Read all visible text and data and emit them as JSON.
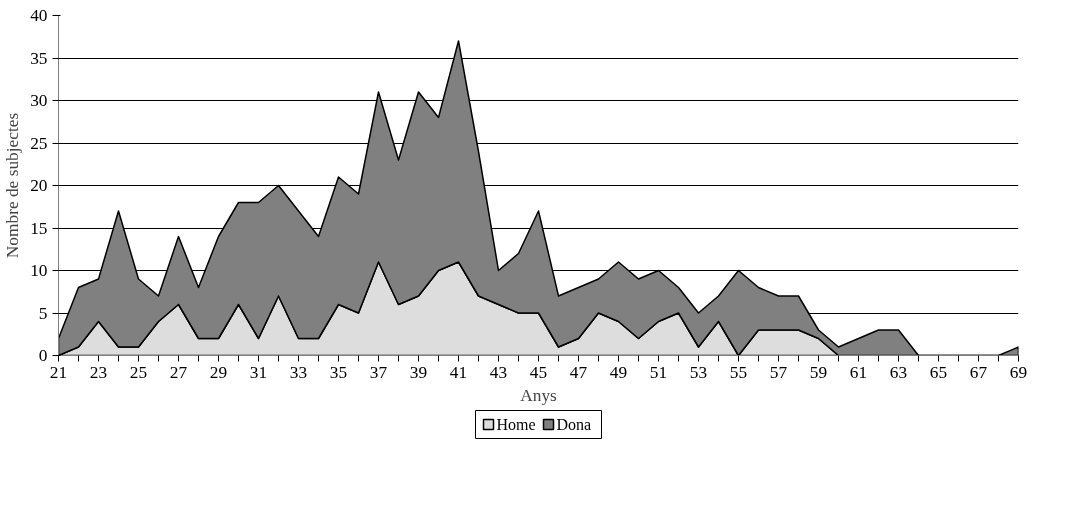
{
  "chart_data": {
    "type": "area",
    "stacked": true,
    "xlabel": "Anys",
    "ylabel": "Nombre de subjectes",
    "categories": [
      "21",
      null,
      "23",
      null,
      "25",
      null,
      "27",
      null,
      "29",
      null,
      "31",
      null,
      "33",
      null,
      "35",
      null,
      "37",
      null,
      "39",
      null,
      "41",
      null,
      "43",
      null,
      "45",
      null,
      "47",
      null,
      "49",
      null,
      "51",
      null,
      "53",
      null,
      "55",
      null,
      "57",
      null,
      "59",
      null,
      "61",
      null,
      "63",
      null,
      "65",
      null,
      "67",
      null,
      "69"
    ],
    "series": [
      {
        "name": "Home",
        "color": "#dddddd",
        "values": [
          0,
          1,
          4,
          1,
          1,
          4,
          6,
          2,
          2,
          6,
          2,
          7,
          2,
          2,
          6,
          5,
          11,
          6,
          7,
          10,
          11,
          7,
          6,
          5,
          5,
          1,
          2,
          5,
          4,
          2,
          4,
          5,
          1,
          4,
          0,
          3,
          3,
          3,
          2,
          0,
          0,
          0,
          0,
          0,
          0,
          0,
          0,
          0,
          0
        ]
      },
      {
        "name": "Dona",
        "color": "#808080",
        "values": [
          2,
          7,
          5,
          16,
          8,
          3,
          8,
          6,
          12,
          12,
          16,
          13,
          15,
          12,
          15,
          14,
          20,
          17,
          24,
          18,
          26,
          17,
          4,
          7,
          12,
          6,
          6,
          4,
          7,
          7,
          6,
          3,
          4,
          3,
          10,
          5,
          4,
          4,
          1,
          1,
          2,
          3,
          3,
          0,
          0,
          0,
          0,
          0,
          1
        ]
      }
    ],
    "ylim": [
      0,
      40
    ],
    "yticks": [
      0,
      5,
      10,
      15,
      20,
      25,
      30,
      35,
      40
    ],
    "grid": "y",
    "legend": "bottom"
  }
}
